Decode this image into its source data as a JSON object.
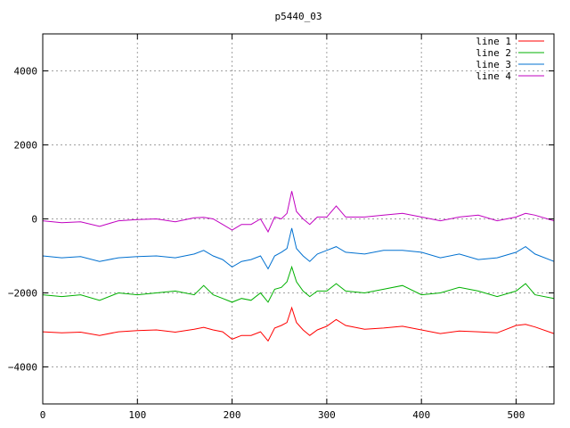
{
  "chart_data": {
    "type": "line",
    "title": "p5440_03",
    "xlabel": "",
    "ylabel": "",
    "xlim": [
      0,
      540
    ],
    "ylim": [
      -5000,
      5000
    ],
    "xticks": [
      0,
      100,
      200,
      300,
      400,
      500
    ],
    "yticks": [
      -4000,
      -2000,
      0,
      2000,
      4000
    ],
    "grid": true,
    "legend_position": "top-right",
    "colors": {
      "frame": "#000000",
      "grid": "#a0a0a0"
    },
    "x": [
      0,
      20,
      40,
      60,
      80,
      100,
      120,
      140,
      160,
      170,
      180,
      190,
      200,
      210,
      220,
      230,
      238,
      245,
      252,
      258,
      263,
      268,
      275,
      282,
      290,
      300,
      310,
      320,
      340,
      360,
      380,
      400,
      420,
      440,
      460,
      480,
      500,
      510,
      520,
      540
    ],
    "series": [
      {
        "name": "line 1",
        "color": "#ff0000",
        "values": [
          -3050,
          -3080,
          -3060,
          -3150,
          -3050,
          -3020,
          -3000,
          -3060,
          -2980,
          -2930,
          -3000,
          -3050,
          -3250,
          -3150,
          -3150,
          -3050,
          -3300,
          -2950,
          -2880,
          -2800,
          -2400,
          -2800,
          -3000,
          -3150,
          -3000,
          -2900,
          -2720,
          -2880,
          -2980,
          -2950,
          -2900,
          -3000,
          -3100,
          -3030,
          -3050,
          -3080,
          -2880,
          -2850,
          -2920,
          -3100
        ]
      },
      {
        "name": "line 2",
        "color": "#00b000",
        "values": [
          -2050,
          -2100,
          -2050,
          -2200,
          -2000,
          -2050,
          -2000,
          -1950,
          -2050,
          -1800,
          -2050,
          -2150,
          -2250,
          -2150,
          -2200,
          -2000,
          -2250,
          -1900,
          -1850,
          -1700,
          -1300,
          -1700,
          -1950,
          -2100,
          -1950,
          -1950,
          -1750,
          -1950,
          -2000,
          -1900,
          -1800,
          -2050,
          -2000,
          -1850,
          -1950,
          -2100,
          -1950,
          -1750,
          -2050,
          -2150
        ]
      },
      {
        "name": "line 3",
        "color": "#0070d0",
        "values": [
          -1000,
          -1050,
          -1020,
          -1150,
          -1050,
          -1020,
          -1000,
          -1050,
          -950,
          -850,
          -1000,
          -1100,
          -1300,
          -1150,
          -1100,
          -1000,
          -1350,
          -1000,
          -900,
          -800,
          -250,
          -800,
          -1000,
          -1150,
          -950,
          -850,
          -750,
          -900,
          -950,
          -850,
          -850,
          -900,
          -1050,
          -950,
          -1100,
          -1050,
          -900,
          -750,
          -950,
          -1150
        ]
      },
      {
        "name": "line 4",
        "color": "#c000c0",
        "values": [
          -50,
          -100,
          -80,
          -200,
          -50,
          -20,
          0,
          -80,
          30,
          40,
          0,
          -150,
          -300,
          -150,
          -150,
          0,
          -350,
          50,
          0,
          150,
          750,
          200,
          0,
          -150,
          50,
          50,
          350,
          50,
          50,
          100,
          150,
          50,
          -50,
          50,
          100,
          -50,
          50,
          150,
          100,
          -50
        ]
      }
    ]
  }
}
